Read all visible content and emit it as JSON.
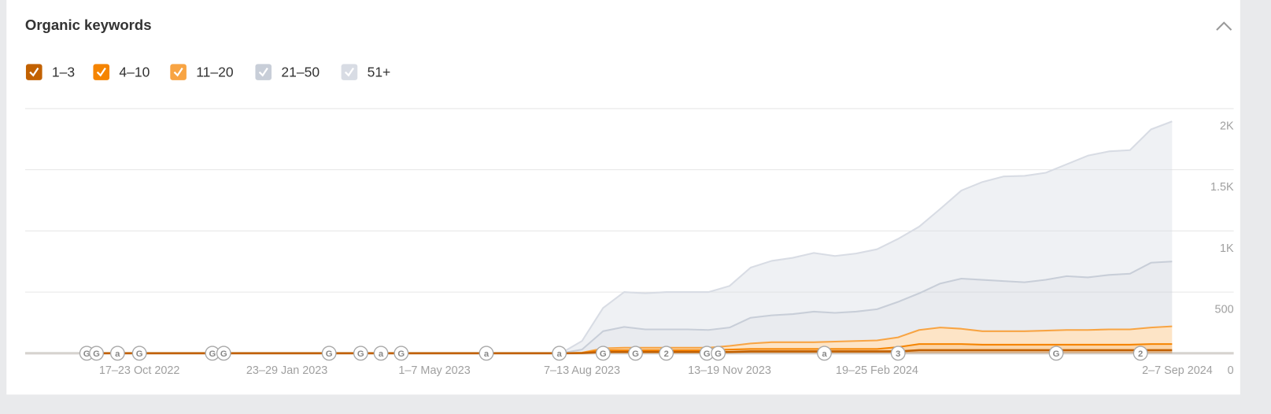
{
  "chart_data": {
    "type": "stacked-area",
    "title": "Organic keywords",
    "categories": [
      null,
      null,
      "17–23 Oct 2022",
      null,
      null,
      null,
      null,
      null,
      null,
      "23–29 Jan 2023",
      null,
      null,
      null,
      null,
      null,
      null,
      "1–7 May 2023",
      null,
      null,
      null,
      null,
      null,
      null,
      "7–13 Aug 2023",
      null,
      null,
      null,
      null,
      null,
      null,
      "13–19 Nov 2023",
      null,
      null,
      null,
      null,
      null,
      null,
      "19–25 Feb 2024",
      null,
      null,
      null,
      null,
      null,
      null,
      null,
      null,
      null,
      null,
      null,
      null,
      null,
      "2–7 Sep 2024"
    ],
    "series": [
      {
        "name": "1–3",
        "color": "#c26100",
        "values": [
          0,
          0,
          0,
          0,
          0,
          0,
          0,
          0,
          0,
          0,
          0,
          0,
          0,
          0,
          0,
          0,
          0,
          0,
          0,
          0,
          0,
          0,
          0,
          1,
          10,
          10,
          10,
          10,
          10,
          10,
          10,
          15,
          15,
          15,
          15,
          15,
          15,
          15,
          15,
          25,
          25,
          25,
          25,
          25,
          25,
          25,
          25,
          25,
          25,
          25,
          25,
          25
        ]
      },
      {
        "name": "4–10",
        "color": "#f58400",
        "values": [
          0,
          0,
          0,
          0,
          0,
          0,
          0,
          0,
          0,
          0,
          0,
          0,
          0,
          0,
          0,
          0,
          0,
          0,
          0,
          0,
          0,
          0,
          0,
          2,
          15,
          15,
          15,
          15,
          15,
          15,
          20,
          20,
          20,
          20,
          20,
          20,
          20,
          20,
          35,
          50,
          50,
          50,
          45,
          45,
          45,
          45,
          45,
          45,
          45,
          45,
          50,
          50
        ]
      },
      {
        "name": "11–20",
        "color": "#f8a443",
        "values": [
          0,
          0,
          0,
          0,
          0,
          0,
          0,
          0,
          0,
          0,
          0,
          0,
          0,
          0,
          0,
          0,
          0,
          0,
          0,
          0,
          0,
          0,
          0,
          2,
          15,
          20,
          20,
          20,
          20,
          20,
          30,
          45,
          55,
          55,
          55,
          60,
          65,
          70,
          80,
          115,
          135,
          125,
          110,
          110,
          110,
          115,
          120,
          120,
          125,
          125,
          135,
          145
        ]
      },
      {
        "name": "21–50",
        "color": "#c8ced8",
        "values": [
          0,
          0,
          0,
          0,
          0,
          0,
          0,
          0,
          0,
          0,
          0,
          0,
          0,
          0,
          0,
          0,
          0,
          0,
          0,
          0,
          0,
          0,
          0,
          25,
          140,
          170,
          150,
          150,
          150,
          145,
          150,
          210,
          220,
          230,
          250,
          235,
          240,
          255,
          290,
          300,
          360,
          410,
          420,
          410,
          400,
          415,
          440,
          430,
          445,
          455,
          530,
          530
        ]
      },
      {
        "name": "51+",
        "color": "#d8dce4",
        "values": [
          0,
          0,
          0,
          0,
          0,
          0,
          0,
          0,
          0,
          0,
          0,
          0,
          0,
          0,
          0,
          0,
          0,
          0,
          0,
          0,
          0,
          0,
          0,
          70,
          190,
          285,
          295,
          305,
          305,
          310,
          340,
          410,
          445,
          460,
          480,
          465,
          475,
          490,
          515,
          545,
          610,
          720,
          800,
          855,
          870,
          875,
          915,
          995,
          1010,
          1010,
          1090,
          1145
        ]
      }
    ],
    "ylim": [
      0,
      2000
    ],
    "yticks": [
      {
        "value": 2000,
        "label": "2K"
      },
      {
        "value": 1500,
        "label": "1.5K"
      },
      {
        "value": 1000,
        "label": "1K"
      },
      500,
      0
    ],
    "grid": true,
    "legend": "top-left",
    "annotations": [
      "G",
      "G",
      "a",
      "G",
      "G",
      "G",
      "G",
      "G",
      "a",
      "G",
      "a",
      "a",
      "G",
      "G",
      "2",
      "G",
      "G",
      "a",
      "3",
      "G",
      "2"
    ]
  }
}
